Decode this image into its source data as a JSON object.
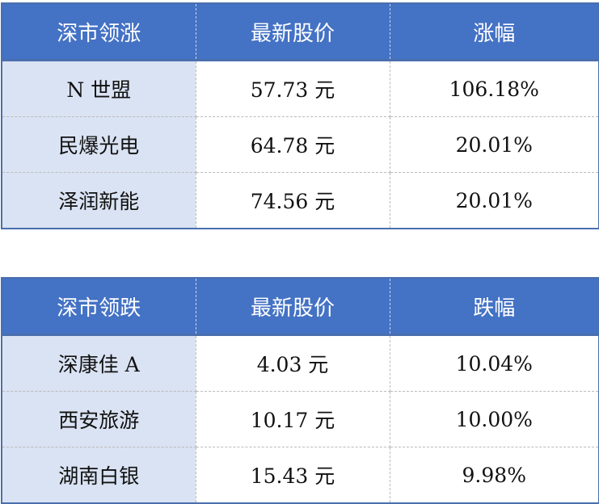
{
  "tables": [
    {
      "headers": [
        "深市领涨",
        "最新股价",
        "涨幅"
      ],
      "rows": [
        [
          "N 世盟",
          "57.73 元",
          "106.18%"
        ],
        [
          "民爆光电",
          "64.78 元",
          "20.01%"
        ],
        [
          "泽润新能",
          "74.56 元",
          "20.01%"
        ]
      ]
    },
    {
      "headers": [
        "深市领跌",
        "最新股价",
        "跌幅"
      ],
      "rows": [
        [
          "深康佳 A",
          "4.03 元",
          "10.04%"
        ],
        [
          "西安旅游",
          "10.17 元",
          "10.00%"
        ],
        [
          "湖南白银",
          "15.43 元",
          "9.98%"
        ]
      ]
    }
  ],
  "colors": {
    "header": "#4472c4",
    "first_column": "#dae3f3"
  }
}
